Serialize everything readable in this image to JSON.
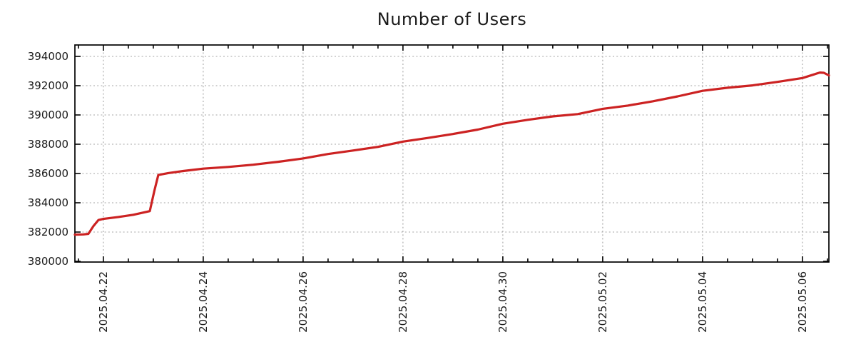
{
  "page": {
    "background": "#ffffff"
  },
  "chart_data": {
    "type": "line",
    "title": "Number of Users",
    "xlabel": "",
    "ylabel": "",
    "legend": "none",
    "grid": "dotted",
    "x_axis": {
      "note": "time axis, day 1.0 = 2025.04.22 00:00, one label every 2 days, minor ticks every 0.5 day",
      "range_days": [
        0.43,
        15.53
      ],
      "label_days": [
        1,
        3,
        5,
        7,
        9,
        11,
        13,
        15
      ],
      "tick_labels": [
        "2025.04.22",
        "2025.04.24",
        "2025.04.26",
        "2025.04.28",
        "2025.04.30",
        "2025.05.02",
        "2025.05.04",
        "2025.05.06"
      ]
    },
    "y_axis": {
      "range": [
        379950,
        394780
      ],
      "ticks": [
        380000,
        382000,
        384000,
        386000,
        388000,
        390000,
        392000,
        394000
      ]
    },
    "series": [
      {
        "name": "number-of-users",
        "color": "#cc2222",
        "points": [
          [
            0.43,
            381820
          ],
          [
            0.6,
            381840
          ],
          [
            0.7,
            381880
          ],
          [
            0.8,
            382400
          ],
          [
            0.9,
            382820
          ],
          [
            1.0,
            382900
          ],
          [
            1.3,
            383030
          ],
          [
            1.6,
            383180
          ],
          [
            1.93,
            383430
          ],
          [
            2.02,
            384800
          ],
          [
            2.1,
            385900
          ],
          [
            2.3,
            386030
          ],
          [
            2.6,
            386170
          ],
          [
            3.0,
            386330
          ],
          [
            3.5,
            386450
          ],
          [
            4.0,
            386600
          ],
          [
            4.5,
            386800
          ],
          [
            5.0,
            387030
          ],
          [
            5.5,
            387330
          ],
          [
            6.0,
            387570
          ],
          [
            6.5,
            387820
          ],
          [
            7.0,
            388180
          ],
          [
            7.5,
            388430
          ],
          [
            8.0,
            388700
          ],
          [
            8.5,
            389000
          ],
          [
            9.0,
            389400
          ],
          [
            9.5,
            389670
          ],
          [
            10.0,
            389900
          ],
          [
            10.5,
            390060
          ],
          [
            11.0,
            390420
          ],
          [
            11.5,
            390640
          ],
          [
            12.0,
            390930
          ],
          [
            12.5,
            391270
          ],
          [
            13.0,
            391650
          ],
          [
            13.5,
            391860
          ],
          [
            14.0,
            392020
          ],
          [
            14.5,
            392260
          ],
          [
            15.0,
            392520
          ],
          [
            15.35,
            392900
          ],
          [
            15.43,
            392880
          ],
          [
            15.53,
            392700
          ]
        ]
      }
    ],
    "colors": {
      "line": "#cc2222",
      "grid": "#a6a6a6",
      "axis": "#000000",
      "text": "#1a1a1a"
    }
  }
}
